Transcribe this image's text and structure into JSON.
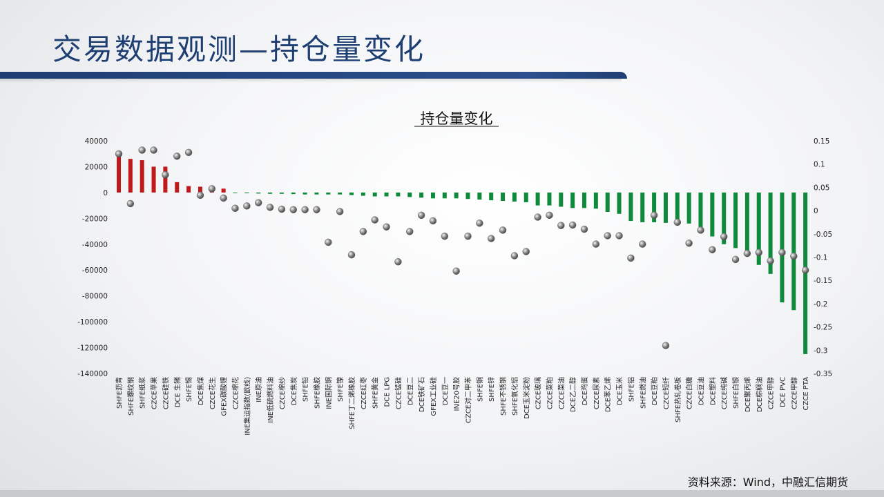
{
  "header": {
    "title": "交易数据观测—持仓量变化"
  },
  "footer": {
    "source": "资料来源：Wind，中融汇信期货"
  },
  "colors": {
    "title": "#1f3f73",
    "positive_bar": "#c0191c",
    "negative_bar": "#0f8a3c",
    "marker": "#8a8a8a"
  },
  "chart_data": {
    "type": "bar",
    "title": "持仓量变化",
    "left_axis": {
      "min": -140000,
      "max": 40000,
      "ticks": [
        40000,
        20000,
        0,
        -20000,
        -40000,
        -60000,
        -80000,
        -100000,
        -120000,
        -140000
      ],
      "tick_labels": [
        "40000",
        "20000",
        "0",
        "-20000",
        "-40000",
        "-60000",
        "-80000",
        "-100000",
        "-120000",
        "-140000"
      ]
    },
    "right_axis": {
      "min": -0.35,
      "max": 0.15,
      "ticks": [
        0.15,
        0.1,
        0.05,
        0,
        -0.05,
        -0.1,
        -0.15,
        -0.2,
        -0.25,
        -0.3,
        -0.35
      ],
      "tick_labels": [
        "0.15",
        "0.1",
        "0.05",
        "0",
        "-0.05",
        "-0.1",
        "-0.15",
        "-0.2",
        "-0.25",
        "-0.3",
        "-0.35"
      ]
    },
    "grid": false,
    "legend": "none",
    "categories": [
      "SHFE沥青",
      "SHFE螺纹钢",
      "SHFE纸浆",
      "CZCE苹果",
      "CZCE硅铁",
      "DCE 生猪",
      "SHFE锡",
      "DCE焦煤",
      "CZCE花生",
      "GFEX碳酸锂",
      "CZCE棉花",
      "INE集运指数(欧线)",
      "INE原油",
      "INE低硫燃料油",
      "CZCE棉纱",
      "DCE焦炭",
      "SHFE铅",
      "SHFE橡胶",
      "INE国际铜",
      "SHFE镍",
      "SHFE丁二烯橡胶",
      "CZCE红枣",
      "SHFE黄金",
      "DCE LPG",
      "CZCE锰硅",
      "DCE豆二",
      "DCE铁矿石",
      "GFEX工业硅",
      "DCE豆一",
      "INE20号胶",
      "CZCE对二甲苯",
      "SHFE铜",
      "SHFE锌",
      "SHFE不锈钢",
      "SHFE氧化铝",
      "DCE玉米淀粉",
      "CZCE玻璃",
      "CZCE菜粕",
      "CZCE菜油",
      "DCE乙二醇",
      "DCE鸡蛋",
      "CZCE尿素",
      "DCE苯乙烯",
      "DCE玉米",
      "SHFE铝",
      "SHFE燃油",
      "DCE豆粕",
      "CZCE短纤",
      "SHFE热轧卷板",
      "CZCE白糖",
      "DCE豆油",
      "DCE塑料",
      "CZCE纯碱",
      "SHFE白银",
      "DCE聚丙烯",
      "DCE棕榈油",
      "CZCE甲醇",
      "DCE PVC",
      "CZCE甲醇",
      "CZCE PTA"
    ],
    "values": [
      30000,
      26000,
      25000,
      20000,
      20000,
      8000,
      5000,
      4500,
      3500,
      3000,
      -500,
      -600,
      -800,
      -1000,
      -1000,
      -1200,
      -1500,
      -1500,
      -1500,
      -1500,
      -2000,
      -2500,
      -3000,
      -3000,
      -3000,
      -3500,
      -4000,
      -4500,
      -4500,
      -4500,
      -5000,
      -5500,
      -6000,
      -6500,
      -7000,
      -7500,
      -10000,
      -10000,
      -11000,
      -12000,
      -12000,
      -12500,
      -15000,
      -16500,
      -22000,
      -23000,
      -23000,
      -23500,
      -24000,
      -24000,
      -28500,
      -34000,
      -40000,
      -43000,
      -48000,
      -56000,
      -63000,
      -85000,
      -91000,
      -125000
    ],
    "ratio_series": [
      0.122,
      0.015,
      0.13,
      0.13,
      0.077,
      0.117,
      0.125,
      0.033,
      0.047,
      0.027,
      0.005,
      0.01,
      0.017,
      0.007,
      0.003,
      0.002,
      0.002,
      0.002,
      -0.068,
      -0.002,
      -0.095,
      -0.045,
      -0.02,
      -0.035,
      -0.11,
      -0.045,
      -0.01,
      -0.022,
      -0.055,
      -0.13,
      -0.055,
      -0.027,
      -0.06,
      -0.042,
      -0.097,
      -0.088,
      -0.014,
      -0.01,
      -0.032,
      -0.031,
      -0.04,
      -0.072,
      -0.054,
      -0.054,
      -0.102,
      -0.072,
      -0.01,
      -0.29,
      -0.025,
      -0.07,
      -0.042,
      -0.084,
      -0.056,
      -0.105,
      -0.092,
      -0.09,
      -0.108,
      -0.09,
      -0.098,
      -0.128
    ]
  }
}
